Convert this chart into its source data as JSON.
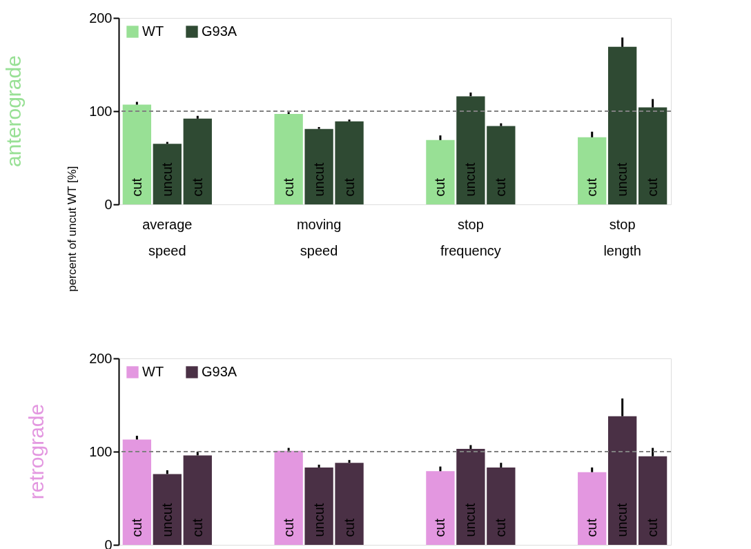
{
  "chart_data": [
    {
      "type": "bar",
      "title": "anterograde",
      "ylabel": "percent of uncut WT [%]",
      "categories": [
        "cut",
        "uncut",
        "cut",
        null,
        null,
        "cut",
        "uncut",
        "cut",
        null,
        null,
        "cut",
        "uncut",
        "cut",
        null,
        null,
        "cut",
        "uncut",
        "cut"
      ],
      "series": [
        {
          "name": "WT",
          "color": "#98e095",
          "values": [
            107,
            null,
            null,
            null,
            null,
            97,
            null,
            null,
            null,
            null,
            69,
            null,
            null,
            null,
            null,
            72,
            null,
            null
          ],
          "errors": [
            [
              107,
              110
            ],
            null,
            null,
            null,
            null,
            [
              97,
              99
            ],
            null,
            null,
            null,
            null,
            [
              69,
              74
            ],
            null,
            null,
            null,
            null,
            [
              72,
              78
            ],
            null,
            null
          ]
        },
        {
          "name": "G93A",
          "color": "#2f4a33",
          "values": [
            null,
            65,
            92,
            null,
            null,
            null,
            81,
            89,
            null,
            null,
            null,
            116,
            84,
            null,
            null,
            null,
            169,
            104
          ],
          "errors": [
            null,
            [
              65,
              67
            ],
            [
              92,
              95
            ],
            null,
            null,
            null,
            [
              81,
              83
            ],
            [
              89,
              91
            ],
            null,
            null,
            null,
            [
              116,
              120
            ],
            [
              84,
              87
            ],
            null,
            null,
            null,
            [
              169,
              179
            ],
            [
              104,
              113
            ]
          ]
        }
      ],
      "annotations": [
        "average speed",
        "moving speed",
        "stop frequency",
        "stop length"
      ],
      "ylim": [
        0,
        200
      ],
      "yticks": [
        0,
        100,
        200
      ],
      "grid": false,
      "legend": "top left",
      "ref_lines": [
        {
          "axis": "y",
          "value": 100,
          "color": "#808080",
          "line_style": "dashed"
        }
      ]
    },
    {
      "type": "bar",
      "title": "retrograde",
      "categories": [
        "cut",
        "uncut",
        "cut",
        null,
        null,
        "cut",
        "uncut",
        "cut",
        null,
        null,
        "cut",
        "uncut",
        "cut",
        null,
        null,
        "cut",
        "uncut",
        "cut"
      ],
      "series": [
        {
          "name": "WT",
          "color": "#e397e0",
          "values": [
            113,
            null,
            null,
            null,
            null,
            101,
            null,
            null,
            null,
            null,
            79,
            null,
            null,
            null,
            null,
            78,
            null,
            null
          ],
          "errors": [
            [
              113,
              117
            ],
            null,
            null,
            null,
            null,
            [
              101,
              104
            ],
            null,
            null,
            null,
            null,
            [
              79,
              84
            ],
            null,
            null,
            null,
            null,
            [
              78,
              83
            ],
            null,
            null
          ]
        },
        {
          "name": "G93A",
          "color": "#4a3045",
          "values": [
            null,
            76,
            96,
            null,
            null,
            null,
            83,
            88,
            null,
            null,
            null,
            103,
            83,
            null,
            null,
            null,
            138,
            95
          ],
          "errors": [
            null,
            [
              76,
              80
            ],
            [
              96,
              100
            ],
            null,
            null,
            null,
            [
              83,
              86
            ],
            [
              88,
              91
            ],
            null,
            null,
            null,
            [
              103,
              107
            ],
            [
              83,
              88
            ],
            null,
            null,
            null,
            [
              138,
              157
            ],
            [
              95,
              104
            ]
          ]
        }
      ],
      "ylim": [
        0,
        200
      ],
      "yticks": [
        0,
        100,
        200
      ],
      "grid": false,
      "legend": "top left",
      "ref_lines": [
        {
          "axis": "y",
          "value": 100,
          "color": "#808080",
          "line_style": "dashed"
        }
      ]
    }
  ]
}
